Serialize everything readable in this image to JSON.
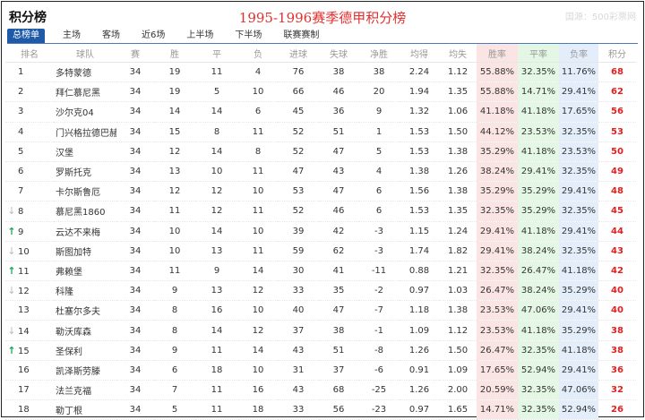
{
  "header": {
    "title": "积分榜",
    "season": "1995-1996赛季德甲积分榜",
    "watermark": "国源：500彩票网"
  },
  "tabs": [
    "总榜单",
    "主场",
    "客场",
    "近6场",
    "上半场",
    "下半场",
    "联赛赛制"
  ],
  "columns": [
    "排名",
    "球队",
    "赛",
    "胜",
    "平",
    "负",
    "进球",
    "失球",
    "净胜",
    "均得",
    "均失",
    "胜率",
    "平率",
    "负率",
    "积分"
  ],
  "rows": [
    {
      "trend": "",
      "rank": "1",
      "team": "多特蒙德",
      "p": "34",
      "w": "19",
      "d": "11",
      "l": "4",
      "gf": "76",
      "ga": "38",
      "gd": "38",
      "avgf": "2.24",
      "avga": "1.12",
      "wr": "55.88%",
      "dr": "32.35%",
      "lr": "11.76%",
      "pts": "68"
    },
    {
      "trend": "",
      "rank": "2",
      "team": "拜仁慕尼黑",
      "p": "34",
      "w": "19",
      "d": "5",
      "l": "10",
      "gf": "66",
      "ga": "46",
      "gd": "20",
      "avgf": "1.94",
      "avga": "1.35",
      "wr": "55.88%",
      "dr": "14.71%",
      "lr": "29.41%",
      "pts": "62"
    },
    {
      "trend": "",
      "rank": "3",
      "team": "沙尔克04",
      "p": "34",
      "w": "14",
      "d": "14",
      "l": "6",
      "gf": "45",
      "ga": "36",
      "gd": "9",
      "avgf": "1.32",
      "avga": "1.06",
      "wr": "41.18%",
      "dr": "41.18%",
      "lr": "17.65%",
      "pts": "56"
    },
    {
      "trend": "",
      "rank": "4",
      "team": "门兴格拉德巴赫",
      "p": "34",
      "w": "15",
      "d": "8",
      "l": "11",
      "gf": "52",
      "ga": "51",
      "gd": "1",
      "avgf": "1.53",
      "avga": "1.50",
      "wr": "44.12%",
      "dr": "23.53%",
      "lr": "32.35%",
      "pts": "53"
    },
    {
      "trend": "",
      "rank": "5",
      "team": "汉堡",
      "p": "34",
      "w": "12",
      "d": "14",
      "l": "8",
      "gf": "52",
      "ga": "47",
      "gd": "5",
      "avgf": "1.53",
      "avga": "1.38",
      "wr": "35.29%",
      "dr": "41.18%",
      "lr": "23.53%",
      "pts": "50"
    },
    {
      "trend": "",
      "rank": "6",
      "team": "罗斯托克",
      "p": "34",
      "w": "13",
      "d": "10",
      "l": "11",
      "gf": "47",
      "ga": "43",
      "gd": "4",
      "avgf": "1.38",
      "avga": "1.26",
      "wr": "38.24%",
      "dr": "29.41%",
      "lr": "32.35%",
      "pts": "49"
    },
    {
      "trend": "",
      "rank": "7",
      "team": "卡尔斯鲁厄",
      "p": "34",
      "w": "12",
      "d": "12",
      "l": "10",
      "gf": "53",
      "ga": "47",
      "gd": "6",
      "avgf": "1.56",
      "avga": "1.38",
      "wr": "35.29%",
      "dr": "35.29%",
      "lr": "29.41%",
      "pts": "48"
    },
    {
      "trend": "down",
      "rank": "8",
      "team": "慕尼黑1860",
      "p": "34",
      "w": "11",
      "d": "12",
      "l": "11",
      "gf": "52",
      "ga": "46",
      "gd": "6",
      "avgf": "1.53",
      "avga": "1.35",
      "wr": "32.35%",
      "dr": "35.29%",
      "lr": "32.35%",
      "pts": "45"
    },
    {
      "trend": "up",
      "rank": "9",
      "team": "云达不来梅",
      "p": "34",
      "w": "10",
      "d": "14",
      "l": "10",
      "gf": "39",
      "ga": "42",
      "gd": "-3",
      "avgf": "1.15",
      "avga": "1.24",
      "wr": "29.41%",
      "dr": "41.18%",
      "lr": "29.41%",
      "pts": "44"
    },
    {
      "trend": "down",
      "rank": "10",
      "team": "斯图加特",
      "p": "34",
      "w": "10",
      "d": "13",
      "l": "11",
      "gf": "59",
      "ga": "62",
      "gd": "-3",
      "avgf": "1.74",
      "avga": "1.82",
      "wr": "29.41%",
      "dr": "38.24%",
      "lr": "32.35%",
      "pts": "43"
    },
    {
      "trend": "up",
      "rank": "11",
      "team": "弗赖堡",
      "p": "34",
      "w": "11",
      "d": "9",
      "l": "14",
      "gf": "30",
      "ga": "41",
      "gd": "-11",
      "avgf": "0.88",
      "avga": "1.21",
      "wr": "32.35%",
      "dr": "26.47%",
      "lr": "41.18%",
      "pts": "42"
    },
    {
      "trend": "down",
      "rank": "12",
      "team": "科隆",
      "p": "34",
      "w": "9",
      "d": "13",
      "l": "12",
      "gf": "33",
      "ga": "35",
      "gd": "-2",
      "avgf": "0.97",
      "avga": "1.03",
      "wr": "26.47%",
      "dr": "38.24%",
      "lr": "35.29%",
      "pts": "40"
    },
    {
      "trend": "",
      "rank": "13",
      "team": "杜塞尔多夫",
      "p": "34",
      "w": "8",
      "d": "16",
      "l": "10",
      "gf": "40",
      "ga": "47",
      "gd": "-7",
      "avgf": "1.18",
      "avga": "1.38",
      "wr": "23.53%",
      "dr": "47.06%",
      "lr": "29.41%",
      "pts": "40"
    },
    {
      "trend": "down",
      "rank": "14",
      "team": "勒沃库森",
      "p": "34",
      "w": "8",
      "d": "14",
      "l": "12",
      "gf": "37",
      "ga": "38",
      "gd": "-1",
      "avgf": "1.09",
      "avga": "1.12",
      "wr": "23.53%",
      "dr": "41.18%",
      "lr": "35.29%",
      "pts": "38"
    },
    {
      "trend": "up",
      "rank": "15",
      "team": "圣保利",
      "p": "34",
      "w": "9",
      "d": "11",
      "l": "14",
      "gf": "43",
      "ga": "51",
      "gd": "-8",
      "avgf": "1.26",
      "avga": "1.50",
      "wr": "26.47%",
      "dr": "32.35%",
      "lr": "41.18%",
      "pts": "38"
    },
    {
      "trend": "",
      "rank": "16",
      "team": "凯泽斯劳滕",
      "p": "34",
      "w": "6",
      "d": "18",
      "l": "10",
      "gf": "31",
      "ga": "37",
      "gd": "-6",
      "avgf": "0.91",
      "avga": "1.09",
      "wr": "17.65%",
      "dr": "52.94%",
      "lr": "29.41%",
      "pts": "36"
    },
    {
      "trend": "",
      "rank": "17",
      "team": "法兰克福",
      "p": "34",
      "w": "7",
      "d": "11",
      "l": "16",
      "gf": "43",
      "ga": "68",
      "gd": "-25",
      "avgf": "1.26",
      "avga": "2.00",
      "wr": "20.59%",
      "dr": "32.35%",
      "lr": "47.06%",
      "pts": "32"
    },
    {
      "trend": "",
      "rank": "18",
      "team": "勒丁根",
      "p": "34",
      "w": "5",
      "d": "11",
      "l": "18",
      "gf": "33",
      "ga": "56",
      "gd": "-23",
      "avgf": "0.97",
      "avga": "1.65",
      "wr": "14.71%",
      "dr": "32.35%",
      "lr": "52.94%",
      "pts": "26"
    }
  ]
}
